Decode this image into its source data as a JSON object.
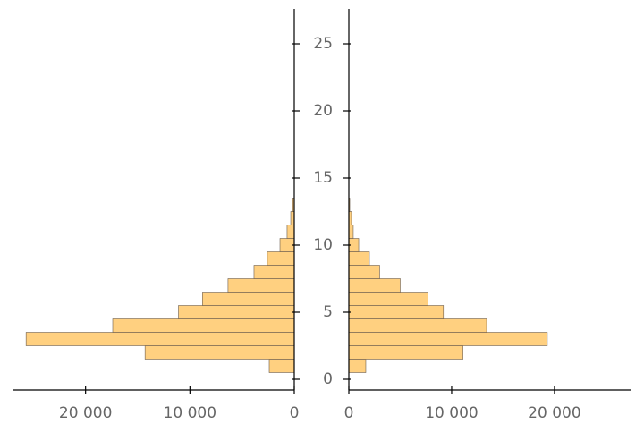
{
  "chart_data": [
    {
      "type": "histogram",
      "orientation": "horizontal",
      "xreversed": true,
      "color": "#ffd080",
      "bins": [
        0.5,
        1.5,
        2.5,
        3.5,
        4.5,
        5.5,
        6.5,
        7.5,
        8.5,
        9.5,
        10.5,
        11.5,
        12.5,
        13.5
      ],
      "values": [
        2400,
        14300,
        25700,
        17400,
        11100,
        8800,
        6350,
        3860,
        2580,
        1370,
        690,
        340,
        150
      ],
      "xlim": [
        0,
        27000
      ],
      "ylim": [
        -0.8,
        27.6
      ],
      "xticks": [
        {
          "value": 20000,
          "label": "20 000"
        },
        {
          "value": 10000,
          "label": "10 000"
        },
        0
      ],
      "yticks": [
        0,
        5,
        10,
        15,
        20,
        25
      ],
      "ytick_labels": false
    },
    {
      "type": "histogram",
      "orientation": "horizontal",
      "xreversed": false,
      "color": "#ffd080",
      "bins": [
        0.5,
        1.5,
        2.5,
        3.5,
        4.5,
        5.5,
        6.5,
        7.5,
        8.5,
        9.5,
        10.5,
        11.5,
        12.5,
        13.5
      ],
      "values": [
        1650,
        11100,
        19300,
        13400,
        9200,
        7700,
        5000,
        3000,
        2000,
        960,
        430,
        260,
        90
      ],
      "xlim": [
        0,
        27400
      ],
      "ylim": [
        -0.8,
        27.6
      ],
      "xticks": [
        0,
        {
          "value": 10000,
          "label": "10 000"
        },
        {
          "value": 20000,
          "label": "20 000"
        }
      ],
      "yticks": [
        0,
        5,
        10,
        15,
        20,
        25
      ],
      "ytick_labels": true
    }
  ]
}
